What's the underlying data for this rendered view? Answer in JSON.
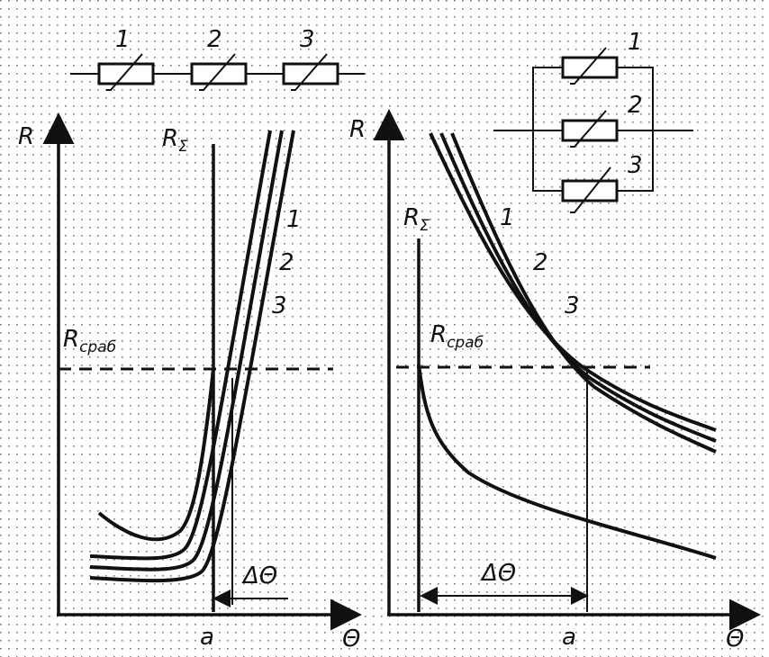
{
  "left_panel": {
    "circuit_labels": [
      "1",
      "2",
      "3"
    ],
    "y_axis_label": "R",
    "sum_label": {
      "symbol": "R",
      "subscript": "Σ"
    },
    "threshold_label": {
      "symbol": "R",
      "subscript": "сраб"
    },
    "curve_labels": [
      "1",
      "2",
      "3"
    ],
    "delta_label": "ΔΘ",
    "point_label": "a",
    "x_axis_label": "Θ"
  },
  "right_panel": {
    "circuit_labels": [
      "1",
      "2",
      "3"
    ],
    "y_axis_label": "R",
    "sum_label": {
      "symbol": "R",
      "subscript": "Σ"
    },
    "threshold_label": {
      "symbol": "R",
      "subscript": "сраб"
    },
    "curve_labels": [
      "1",
      "2",
      "3"
    ],
    "delta_label": "ΔΘ",
    "point_label": "a",
    "x_axis_label": "Θ"
  }
}
